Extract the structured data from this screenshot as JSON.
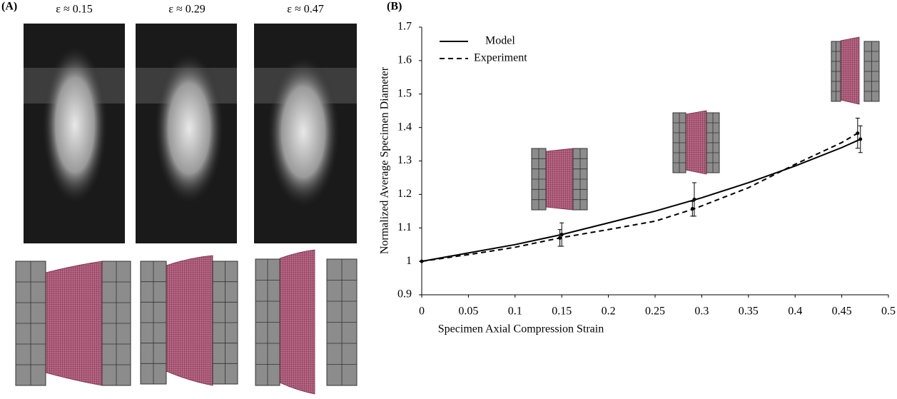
{
  "panel_a": {
    "label": "(A)",
    "strain_labels": [
      "ε ≈ 0.15",
      "ε ≈ 0.29",
      "ε ≈ 0.47"
    ]
  },
  "chart_data": {
    "type": "line",
    "panel_label": "(B)",
    "x_label": "Specimen Axial Compression Strain",
    "y_label": "Normalized Average Specimen Diameter",
    "xlim": [
      0,
      0.5
    ],
    "xticks": [
      0,
      0.05,
      0.1,
      0.15,
      0.2,
      0.25,
      0.3,
      0.35,
      0.4,
      0.45,
      0.5
    ],
    "ylim": [
      0.9,
      1.7
    ],
    "yticks": [
      0.9,
      1,
      1.1,
      1.2,
      1.3,
      1.4,
      1.5,
      1.6,
      1.7
    ],
    "legend": "top-left",
    "series": [
      {
        "name": "Model",
        "color": "#000000",
        "dash": false,
        "x": [
          0,
          0.05,
          0.1,
          0.15,
          0.2,
          0.25,
          0.3,
          0.35,
          0.4,
          0.45,
          0.47
        ],
        "values": [
          1.0,
          1.025,
          1.05,
          1.08,
          1.115,
          1.15,
          1.19,
          1.235,
          1.285,
          1.34,
          1.365
        ],
        "markers": {
          "x": [
            0.15,
            0.292,
            0.47
          ],
          "values": [
            1.08,
            1.185,
            1.365
          ],
          "errors": [
            0.035,
            0.05,
            0.04
          ]
        }
      },
      {
        "name": "Experiment",
        "color": "#000000",
        "dash": true,
        "x": [
          0,
          0.05,
          0.1,
          0.148,
          0.2,
          0.25,
          0.292,
          0.35,
          0.4,
          0.45,
          0.467
        ],
        "values": [
          1.0,
          1.02,
          1.042,
          1.07,
          1.095,
          1.12,
          1.157,
          1.22,
          1.29,
          1.355,
          1.383
        ],
        "markers": {
          "x": [
            0,
            0.148,
            0.29,
            0.467
          ],
          "values": [
            1.0,
            1.07,
            1.157,
            1.383
          ],
          "errors": [
            0,
            0.025,
            0.022,
            0.045
          ]
        }
      }
    ]
  }
}
